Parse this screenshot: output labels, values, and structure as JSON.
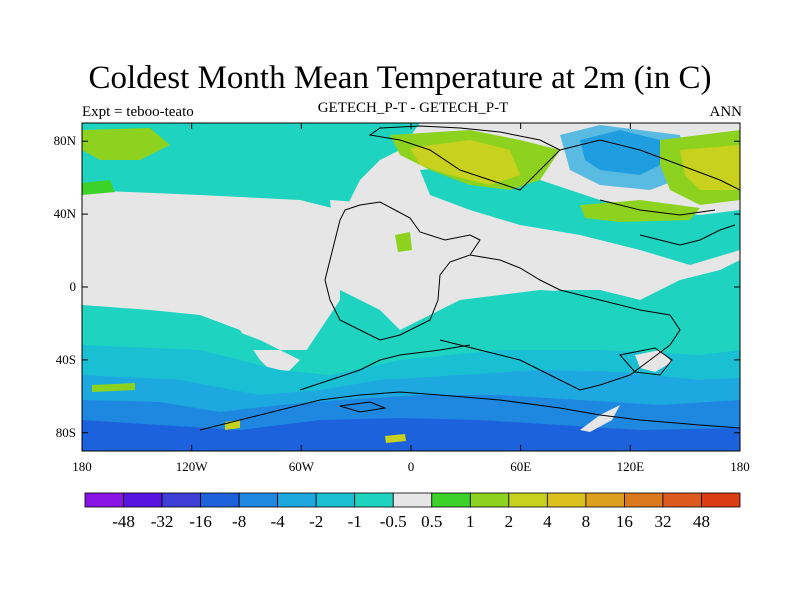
{
  "title": "Coldest Month Mean Temperature at 2m (in C)",
  "subtitle_left": "Expt = teboo-teato",
  "subtitle_center": "GETECH_P-T - GETECH_P-T",
  "subtitle_right": "ANN",
  "map": {
    "lon_range": [
      -180,
      180
    ],
    "lat_range": [
      -90,
      90
    ],
    "x_ticks": [
      {
        "value": -180,
        "label": "180"
      },
      {
        "value": -120,
        "label": "120W"
      },
      {
        "value": -60,
        "label": "60W"
      },
      {
        "value": 0,
        "label": "0"
      },
      {
        "value": 60,
        "label": "60E"
      },
      {
        "value": 120,
        "label": "120E"
      },
      {
        "value": 180,
        "label": "180"
      }
    ],
    "y_ticks": [
      {
        "value": 80,
        "label": "80N"
      },
      {
        "value": 40,
        "label": "40N"
      },
      {
        "value": 0,
        "label": "0"
      },
      {
        "value": -40,
        "label": "40S"
      },
      {
        "value": -80,
        "label": "80S"
      }
    ]
  },
  "colorbar": {
    "colors": [
      "#8a13e6",
      "#5a14e2",
      "#3f3ed8",
      "#1b62dc",
      "#1e88e0",
      "#1ea8e0",
      "#19c0d4",
      "#1ed4c0",
      "#e6e6e6",
      "#3cd22a",
      "#8cd21e",
      "#c8d21e",
      "#dcc01e",
      "#dca01e",
      "#dc781e",
      "#dc5a1e",
      "#dc3c14"
    ],
    "labels": [
      "-48",
      "-32",
      "-16",
      "-8",
      "-4",
      "-2",
      "-1",
      "-0.5",
      "0.5",
      "1",
      "2",
      "4",
      "8",
      "16",
      "32",
      "48"
    ]
  }
}
